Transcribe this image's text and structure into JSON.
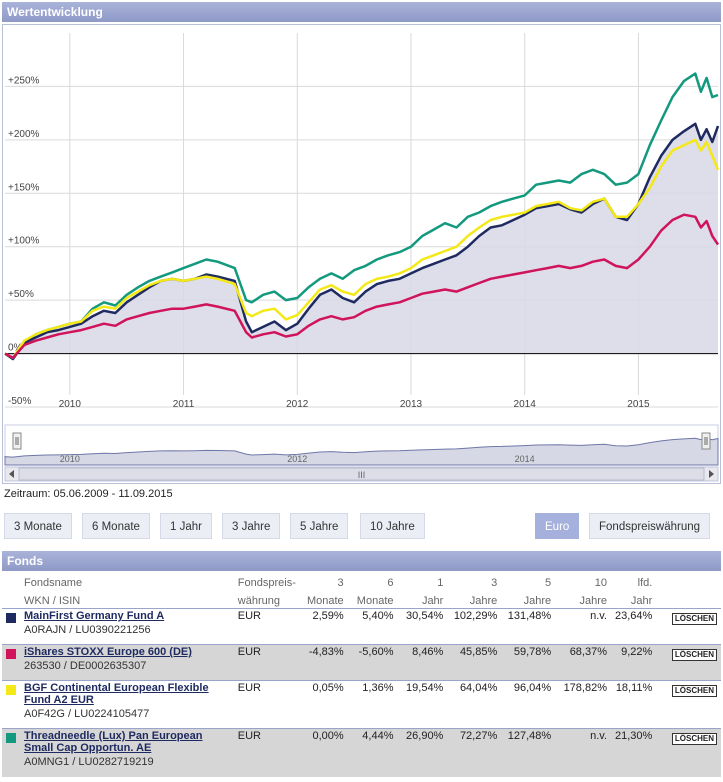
{
  "chart_panel": {
    "title": "Wertentwicklung"
  },
  "chart_data": {
    "type": "line",
    "title": "Wertentwicklung",
    "ylabel": "",
    "xlabel": "",
    "ylim": [
      -50,
      300
    ],
    "y_ticks": [
      -50,
      0,
      50,
      100,
      150,
      200,
      250
    ],
    "y_tick_labels": [
      "-50%",
      "0%",
      "+50%",
      "+100%",
      "+150%",
      "+200%",
      "+250%"
    ],
    "x_tick_labels": [
      "2010",
      "2011",
      "2012",
      "2013",
      "2014",
      "2015"
    ],
    "x_tick_years": [
      2010,
      2011,
      2012,
      2013,
      2014,
      2015
    ],
    "x_range": [
      2009.43,
      2015.7
    ],
    "navigator_labels": [
      "2010",
      "2012",
      "2014"
    ],
    "navigator_years": [
      2010,
      2012,
      2014
    ],
    "series": [
      {
        "name": "Threadneedle (Lux) Pan European Small Cap Opportun. AE",
        "color": "#13997e",
        "x": [
          2009.43,
          2009.5,
          2009.6,
          2009.7,
          2009.8,
          2009.9,
          2010.0,
          2010.1,
          2010.2,
          2010.3,
          2010.4,
          2010.5,
          2010.6,
          2010.7,
          2010.8,
          2010.9,
          2011.0,
          2011.1,
          2011.2,
          2011.3,
          2011.45,
          2011.55,
          2011.6,
          2011.7,
          2011.8,
          2011.9,
          2012.0,
          2012.1,
          2012.2,
          2012.3,
          2012.4,
          2012.5,
          2012.6,
          2012.7,
          2012.8,
          2012.9,
          2013.0,
          2013.1,
          2013.2,
          2013.3,
          2013.4,
          2013.5,
          2013.6,
          2013.7,
          2013.8,
          2013.9,
          2014.0,
          2014.1,
          2014.2,
          2014.3,
          2014.4,
          2014.5,
          2014.6,
          2014.7,
          2014.8,
          2014.9,
          2015.0,
          2015.1,
          2015.2,
          2015.3,
          2015.4,
          2015.5,
          2015.55,
          2015.6,
          2015.65,
          2015.7
        ],
        "values": [
          0,
          -5,
          10,
          18,
          22,
          25,
          28,
          30,
          42,
          48,
          45,
          55,
          62,
          68,
          72,
          76,
          80,
          84,
          88,
          86,
          80,
          50,
          48,
          55,
          58,
          50,
          52,
          62,
          70,
          75,
          70,
          78,
          82,
          88,
          92,
          95,
          100,
          110,
          116,
          122,
          118,
          128,
          132,
          138,
          142,
          145,
          148,
          158,
          160,
          162,
          160,
          168,
          172,
          168,
          158,
          160,
          168,
          195,
          218,
          240,
          255,
          262,
          245,
          258,
          240,
          242
        ]
      },
      {
        "name": "MainFirst Germany Fund A",
        "color": "#1f2b60",
        "x": [
          2009.43,
          2009.5,
          2009.6,
          2009.7,
          2009.8,
          2009.9,
          2010.0,
          2010.1,
          2010.2,
          2010.3,
          2010.4,
          2010.5,
          2010.6,
          2010.7,
          2010.8,
          2010.9,
          2011.0,
          2011.1,
          2011.2,
          2011.3,
          2011.45,
          2011.55,
          2011.6,
          2011.7,
          2011.8,
          2011.9,
          2012.0,
          2012.1,
          2012.2,
          2012.3,
          2012.4,
          2012.5,
          2012.6,
          2012.7,
          2012.8,
          2012.9,
          2013.0,
          2013.1,
          2013.2,
          2013.3,
          2013.4,
          2013.5,
          2013.6,
          2013.7,
          2013.8,
          2013.9,
          2014.0,
          2014.1,
          2014.2,
          2014.3,
          2014.4,
          2014.5,
          2014.6,
          2014.7,
          2014.8,
          2014.9,
          2015.0,
          2015.1,
          2015.2,
          2015.3,
          2015.4,
          2015.5,
          2015.55,
          2015.6,
          2015.65,
          2015.7
        ],
        "values": [
          0,
          -5,
          10,
          15,
          20,
          22,
          25,
          28,
          35,
          40,
          38,
          48,
          55,
          62,
          68,
          70,
          68,
          70,
          74,
          72,
          68,
          30,
          20,
          25,
          30,
          22,
          28,
          42,
          55,
          60,
          52,
          48,
          58,
          65,
          68,
          70,
          75,
          80,
          84,
          88,
          92,
          100,
          110,
          118,
          120,
          125,
          130,
          136,
          138,
          140,
          135,
          132,
          140,
          145,
          128,
          125,
          140,
          165,
          185,
          200,
          208,
          215,
          200,
          210,
          198,
          213
        ]
      },
      {
        "name": "BGF Continental European Flexible Fund A2 EUR",
        "color": "#f4e816",
        "x": [
          2009.43,
          2009.5,
          2009.6,
          2009.7,
          2009.8,
          2009.9,
          2010.0,
          2010.1,
          2010.2,
          2010.3,
          2010.4,
          2010.5,
          2010.6,
          2010.7,
          2010.8,
          2010.9,
          2011.0,
          2011.1,
          2011.2,
          2011.3,
          2011.45,
          2011.55,
          2011.6,
          2011.7,
          2011.8,
          2011.9,
          2012.0,
          2012.1,
          2012.2,
          2012.3,
          2012.4,
          2012.5,
          2012.6,
          2012.7,
          2012.8,
          2012.9,
          2013.0,
          2013.1,
          2013.2,
          2013.3,
          2013.4,
          2013.5,
          2013.6,
          2013.7,
          2013.8,
          2013.9,
          2014.0,
          2014.1,
          2014.2,
          2014.3,
          2014.4,
          2014.5,
          2014.6,
          2014.7,
          2014.8,
          2014.9,
          2015.0,
          2015.1,
          2015.2,
          2015.3,
          2015.4,
          2015.5,
          2015.55,
          2015.6,
          2015.65,
          2015.7
        ],
        "values": [
          0,
          -4,
          12,
          18,
          22,
          25,
          28,
          30,
          40,
          44,
          42,
          52,
          58,
          64,
          68,
          70,
          68,
          70,
          72,
          70,
          65,
          38,
          35,
          40,
          42,
          32,
          36,
          48,
          60,
          64,
          58,
          55,
          65,
          70,
          72,
          75,
          80,
          88,
          92,
          96,
          100,
          110,
          118,
          125,
          128,
          130,
          132,
          138,
          140,
          142,
          136,
          134,
          142,
          145,
          128,
          128,
          140,
          155,
          175,
          190,
          195,
          200,
          190,
          198,
          185,
          172
        ]
      },
      {
        "name": "iShares STOXX Europe 600 (DE)",
        "color": "#d0135b",
        "x": [
          2009.43,
          2009.5,
          2009.6,
          2009.7,
          2009.8,
          2009.9,
          2010.0,
          2010.1,
          2010.2,
          2010.3,
          2010.4,
          2010.5,
          2010.6,
          2010.7,
          2010.8,
          2010.9,
          2011.0,
          2011.1,
          2011.2,
          2011.3,
          2011.45,
          2011.55,
          2011.6,
          2011.7,
          2011.8,
          2011.9,
          2012.0,
          2012.1,
          2012.2,
          2012.3,
          2012.4,
          2012.5,
          2012.6,
          2012.7,
          2012.8,
          2012.9,
          2013.0,
          2013.1,
          2013.2,
          2013.3,
          2013.4,
          2013.5,
          2013.6,
          2013.7,
          2013.8,
          2013.9,
          2014.0,
          2014.1,
          2014.2,
          2014.3,
          2014.4,
          2014.5,
          2014.6,
          2014.7,
          2014.8,
          2014.9,
          2015.0,
          2015.1,
          2015.2,
          2015.3,
          2015.4,
          2015.5,
          2015.55,
          2015.6,
          2015.65,
          2015.7
        ],
        "values": [
          0,
          -4,
          8,
          12,
          15,
          18,
          20,
          22,
          25,
          28,
          26,
          32,
          35,
          38,
          40,
          42,
          42,
          44,
          46,
          44,
          40,
          20,
          15,
          18,
          20,
          16,
          18,
          26,
          32,
          35,
          32,
          34,
          40,
          44,
          46,
          48,
          52,
          56,
          58,
          60,
          58,
          62,
          66,
          70,
          72,
          74,
          76,
          78,
          80,
          82,
          80,
          82,
          86,
          88,
          82,
          80,
          88,
          100,
          115,
          125,
          130,
          128,
          118,
          124,
          110,
          102
        ]
      }
    ]
  },
  "controls": {
    "range_text": "Zeitraum: 05.06.2009 - 11.09.2015",
    "period_buttons": [
      "3 Monate",
      "6 Monate",
      "1 Jahr",
      "3 Jahre",
      "5 Jahre",
      "10 Jahre"
    ],
    "currency_buttons": [
      "Euro",
      "Fondspreiswährung"
    ]
  },
  "funds_panel": {
    "title": "Fonds",
    "headers": {
      "name_top": "Fondsname",
      "name_bottom": "WKN / ISIN",
      "currency_top": "Fondspreis-",
      "currency_bottom": "währung",
      "m3_top": "3",
      "m3_bottom": "Monate",
      "m6_top": "6",
      "m6_bottom": "Monate",
      "y1_top": "1",
      "y1_bottom": "Jahr",
      "y3_top": "3",
      "y3_bottom": "Jahre",
      "y5_top": "5",
      "y5_bottom": "Jahre",
      "y10_top": "10",
      "y10_bottom": "Jahre",
      "ytd_top": "lfd.",
      "ytd_bottom": "Jahr"
    },
    "delete_label": "LÖSCHEN",
    "rows": [
      {
        "name": "MainFirst Germany Fund A",
        "ids": "A0RAJN / LU0390221256",
        "color": "#1f2b60",
        "currency": "EUR",
        "m3": "2,59%",
        "m6": "5,40%",
        "y1": "30,54%",
        "y3": "102,29%",
        "y5": "131,48%",
        "y10": "n.v.",
        "ytd": "23,64%"
      },
      {
        "name": "iShares STOXX Europe 600 (DE)",
        "ids": "263530 / DE0002635307",
        "color": "#d0135b",
        "currency": "EUR",
        "m3": "-4,83%",
        "m6": "-5,60%",
        "y1": "8,46%",
        "y3": "45,85%",
        "y5": "59,78%",
        "y10": "68,37%",
        "ytd": "9,22%"
      },
      {
        "name": "BGF Continental European Flexible Fund A2 EUR",
        "ids": "A0F42G / LU0224105477",
        "color": "#f4e816",
        "currency": "EUR",
        "m3": "0,05%",
        "m6": "1,36%",
        "y1": "19,54%",
        "y3": "64,04%",
        "y5": "96,04%",
        "y10": "178,82%",
        "ytd": "18,11%"
      },
      {
        "name": "Threadneedle (Lux) Pan European Small Cap Opportun. AE",
        "ids": "A0MNG1 / LU0282719219",
        "color": "#13997e",
        "currency": "EUR",
        "m3": "0,00%",
        "m6": "4,44%",
        "y1": "26,90%",
        "y3": "72,27%",
        "y5": "127,48%",
        "y10": "n.v.",
        "ytd": "21,30%"
      }
    ]
  }
}
